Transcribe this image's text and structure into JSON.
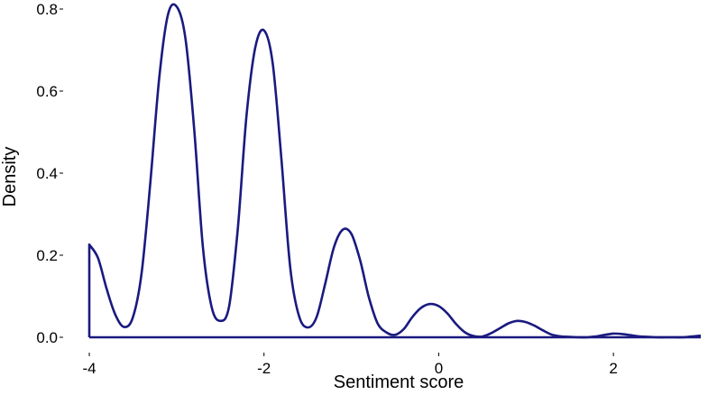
{
  "chart_data": {
    "type": "area",
    "xlabel": "Sentiment score",
    "ylabel": "Density",
    "xlim": [
      -4,
      3
    ],
    "ylim": [
      0,
      0.8
    ],
    "x_ticks": [
      -4,
      -2,
      0,
      2
    ],
    "y_ticks": [
      0.0,
      0.2,
      0.4,
      0.6,
      0.8
    ],
    "x_tick_labels": [
      "-4",
      "-2",
      "0",
      "2"
    ],
    "y_tick_labels": [
      "0.0",
      "0.2",
      "0.4",
      "0.6",
      "0.8"
    ],
    "grid": false,
    "line_color": "#1a1a80",
    "series": [
      {
        "x": [
          -4.0,
          -3.9,
          -3.8,
          -3.7,
          -3.6,
          -3.5,
          -3.4,
          -3.3,
          -3.2,
          -3.1,
          -3.0,
          -2.9,
          -2.8,
          -2.7,
          -2.6,
          -2.5,
          -2.4,
          -2.3,
          -2.2,
          -2.1,
          -2.0,
          -1.9,
          -1.8,
          -1.7,
          -1.6,
          -1.5,
          -1.4,
          -1.3,
          -1.2,
          -1.1,
          -1.0,
          -0.9,
          -0.8,
          -0.7,
          -0.6,
          -0.5,
          -0.4,
          -0.3,
          -0.2,
          -0.1,
          0.0,
          0.1,
          0.2,
          0.3,
          0.4,
          0.5,
          0.6,
          0.7,
          0.8,
          0.9,
          1.0,
          1.1,
          1.2,
          1.3,
          1.4,
          1.5,
          1.6,
          1.7,
          1.8,
          1.9,
          2.0,
          2.1,
          2.2,
          2.3,
          2.4,
          2.5,
          2.6,
          2.7,
          2.8,
          2.9,
          3.0
        ],
        "y": [
          0.226,
          0.193,
          0.117,
          0.054,
          0.025,
          0.049,
          0.158,
          0.38,
          0.631,
          0.786,
          0.806,
          0.73,
          0.51,
          0.221,
          0.074,
          0.04,
          0.075,
          0.265,
          0.54,
          0.706,
          0.748,
          0.667,
          0.432,
          0.17,
          0.052,
          0.024,
          0.048,
          0.13,
          0.219,
          0.262,
          0.252,
          0.188,
          0.098,
          0.034,
          0.012,
          0.006,
          0.02,
          0.05,
          0.072,
          0.081,
          0.076,
          0.058,
          0.032,
          0.012,
          0.003,
          0.002,
          0.01,
          0.022,
          0.034,
          0.04,
          0.037,
          0.028,
          0.016,
          0.006,
          0.002,
          0.001,
          0.0,
          0.0,
          0.002,
          0.006,
          0.009,
          0.008,
          0.005,
          0.002,
          0.001,
          0.0,
          0.0,
          0.0,
          0.0,
          0.002,
          0.004
        ]
      }
    ]
  }
}
